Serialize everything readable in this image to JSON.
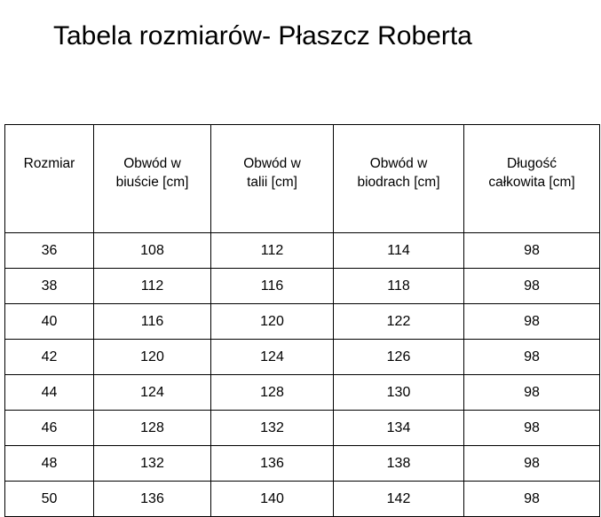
{
  "title": "Tabela rozmiarów- Płaszcz Roberta",
  "headers": [
    "Rozmiar",
    "Obwód w biuście [cm]",
    "Obwód w talii [cm]",
    "Obwód w biodrach [cm]",
    "Długość całkowita [cm]"
  ],
  "header_lines": [
    [
      "Rozmiar",
      ""
    ],
    [
      "Obwód w",
      "biuście [cm]"
    ],
    [
      "Obwód w",
      "talii [cm]"
    ],
    [
      "Obwód w",
      "biodrach [cm]"
    ],
    [
      "Długość",
      "całkowita [cm]"
    ]
  ],
  "rows": [
    [
      "36",
      "108",
      "112",
      "114",
      "98"
    ],
    [
      "38",
      "112",
      "116",
      "118",
      "98"
    ],
    [
      "40",
      "116",
      "120",
      "122",
      "98"
    ],
    [
      "42",
      "120",
      "124",
      "126",
      "98"
    ],
    [
      "44",
      "124",
      "128",
      "130",
      "98"
    ],
    [
      "46",
      "128",
      "132",
      "134",
      "98"
    ],
    [
      "48",
      "132",
      "136",
      "138",
      "98"
    ],
    [
      "50",
      "136",
      "140",
      "142",
      "98"
    ]
  ]
}
